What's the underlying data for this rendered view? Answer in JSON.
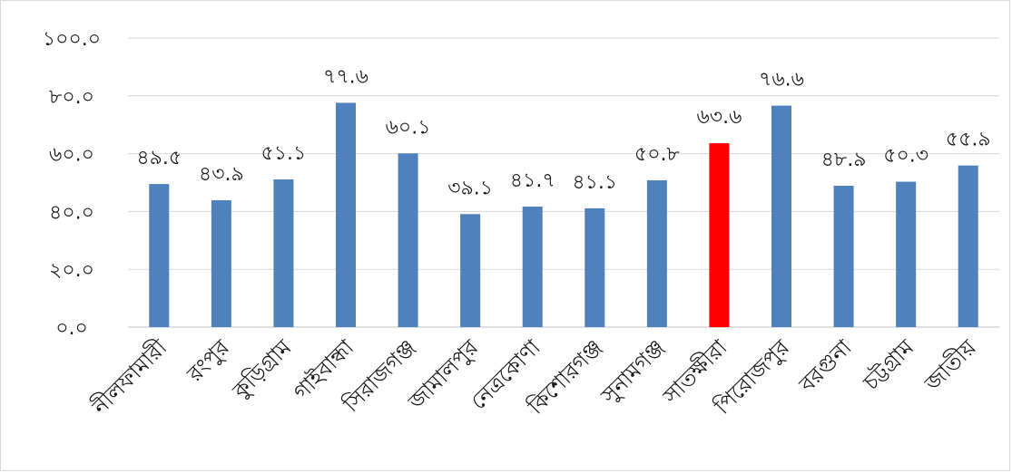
{
  "chart_data": {
    "type": "bar",
    "title": "",
    "xlabel": "",
    "ylabel": "",
    "ylim": [
      0,
      100
    ],
    "y_ticks": [
      0,
      20,
      40,
      60,
      80,
      100
    ],
    "y_tick_labels": [
      "০.০",
      "২০.০",
      "৪০.০",
      "৬০.০",
      "৮০.০",
      "১০০.০"
    ],
    "grid": true,
    "legend": "none",
    "categories": [
      "নীলফামারী",
      "রংপুর",
      "কুড়িগ্রাম",
      "গাইবান্ধা",
      "সিরাজগঞ্জ",
      "জামালপুর",
      "নেত্রকোণা",
      "কিশোরগঞ্জ",
      "সুনামগঞ্জ",
      "সাতক্ষীরা",
      "পিরোজপুর",
      "বরগুনা",
      "চট্টগ্রাম",
      "জাতীয়"
    ],
    "values": [
      49.5,
      43.9,
      51.1,
      77.6,
      60.1,
      39.1,
      41.7,
      41.1,
      50.8,
      63.6,
      76.6,
      48.9,
      50.3,
      55.9
    ],
    "value_labels": [
      "৪৯.৫",
      "৪৩.৯",
      "৫১.১",
      "৭৭.৬",
      "৬০.১",
      "৩৯.১",
      "৪১.৭",
      "৪১.১",
      "৫০.৮",
      "৬৩.৬",
      "৭৬.৬",
      "৪৮.৯",
      "৫০.৩",
      "৫৫.৯"
    ],
    "colors": {
      "default": "#4f81bd",
      "highlight": "#ff0000"
    },
    "highlight_category": "সাতক্ষীরা"
  }
}
